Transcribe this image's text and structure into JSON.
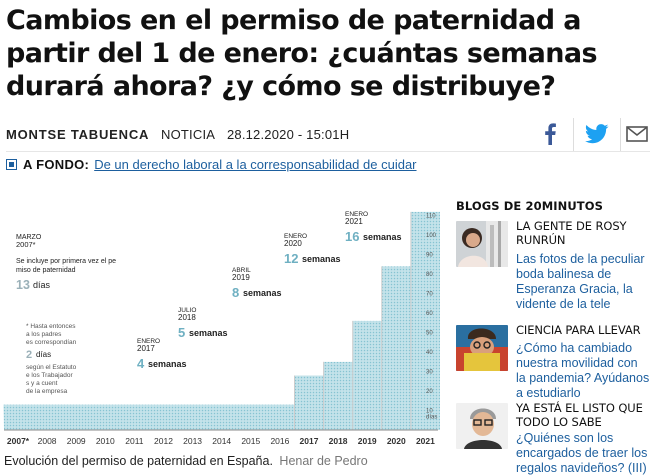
{
  "article": {
    "headline": "Cambios en el permiso de paternidad a partir del 1 de enero: ¿cuántas semanas durará ahora? ¿y cómo se distribuye?",
    "author": "MONTSE TABUENCA",
    "type": "NOTICIA",
    "datetime": "28.12.2020 - 15:01H",
    "a_fondo_label": "A FONDO:",
    "a_fondo_link": "De un derecho laboral a la corresponsabilidad de cuidar",
    "caption": "Evolución del permiso de paternidad en España.",
    "credit": "Henar de Pedro"
  },
  "share": {
    "icons": [
      "facebook-icon",
      "twitter-icon",
      "email-icon"
    ],
    "facebook_color": "#3b5998",
    "twitter_color": "#1da1f2"
  },
  "chart_data": {
    "type": "area",
    "x": [
      "2007*",
      "2008",
      "2009",
      "2010",
      "2011",
      "2012",
      "2013",
      "2014",
      "2015",
      "2016",
      "2017",
      "2018",
      "2019",
      "2020",
      "2021"
    ],
    "y_days": [
      13,
      13,
      13,
      13,
      13,
      13,
      13,
      13,
      13,
      13,
      28,
      35,
      56,
      84,
      112
    ],
    "y_ticks": [
      "10",
      "20",
      "30",
      "40",
      "50",
      "60",
      "70",
      "80",
      "90",
      "100",
      "110"
    ],
    "y_tick_values": [
      10,
      20,
      30,
      40,
      50,
      60,
      70,
      80,
      90,
      100,
      110
    ],
    "ylim": [
      0,
      115
    ],
    "y_unit_label": "días",
    "fill_color": "#b5dde6",
    "dot_color": "#7fc1d1",
    "annotations": [
      {
        "date": "MARZO",
        "year": "2007*",
        "note": "Se incluye por primera vez el permiso de paternidad",
        "value": "13",
        "unit": "días"
      },
      {
        "footnote": "* Hasta entonces a los padres les correspondían",
        "value": "2",
        "unit": "días",
        "note": "según el Estatuto de los Trabajadores y a cuenta de la empresa"
      },
      {
        "date": "ENERO",
        "year": "2017",
        "value": "4",
        "unit": "semanas"
      },
      {
        "date": "JULIO",
        "year": "2018",
        "value": "5",
        "unit": "semanas"
      },
      {
        "date": "ABRIL",
        "year": "2019",
        "value": "8",
        "unit": "semanas"
      },
      {
        "date": "ENERO",
        "year": "2020",
        "value": "12",
        "unit": "semanas"
      },
      {
        "date": "ENERO",
        "year": "2021",
        "value": "16",
        "unit": "semanas"
      }
    ]
  },
  "sidebar": {
    "title": "BLOGS DE 20MINUTOS",
    "blogs": [
      {
        "title": "LA GENTE DE ROSY RUNRÚN",
        "link": "Las fotos de la peculiar boda balinesa de Esperanza Gracia, la vidente de la tele"
      },
      {
        "title": "CIENCIA PARA LLEVAR",
        "link": "¿Cómo ha cambiado nuestra movilidad con la pandemia? Ayúdanos a estudiarlo"
      },
      {
        "title": "YA ESTÁ EL LISTO QUE TODO LO SABE",
        "link": "¿Quiénes son los encargados de traer los regalos navideños? (III)"
      }
    ]
  }
}
